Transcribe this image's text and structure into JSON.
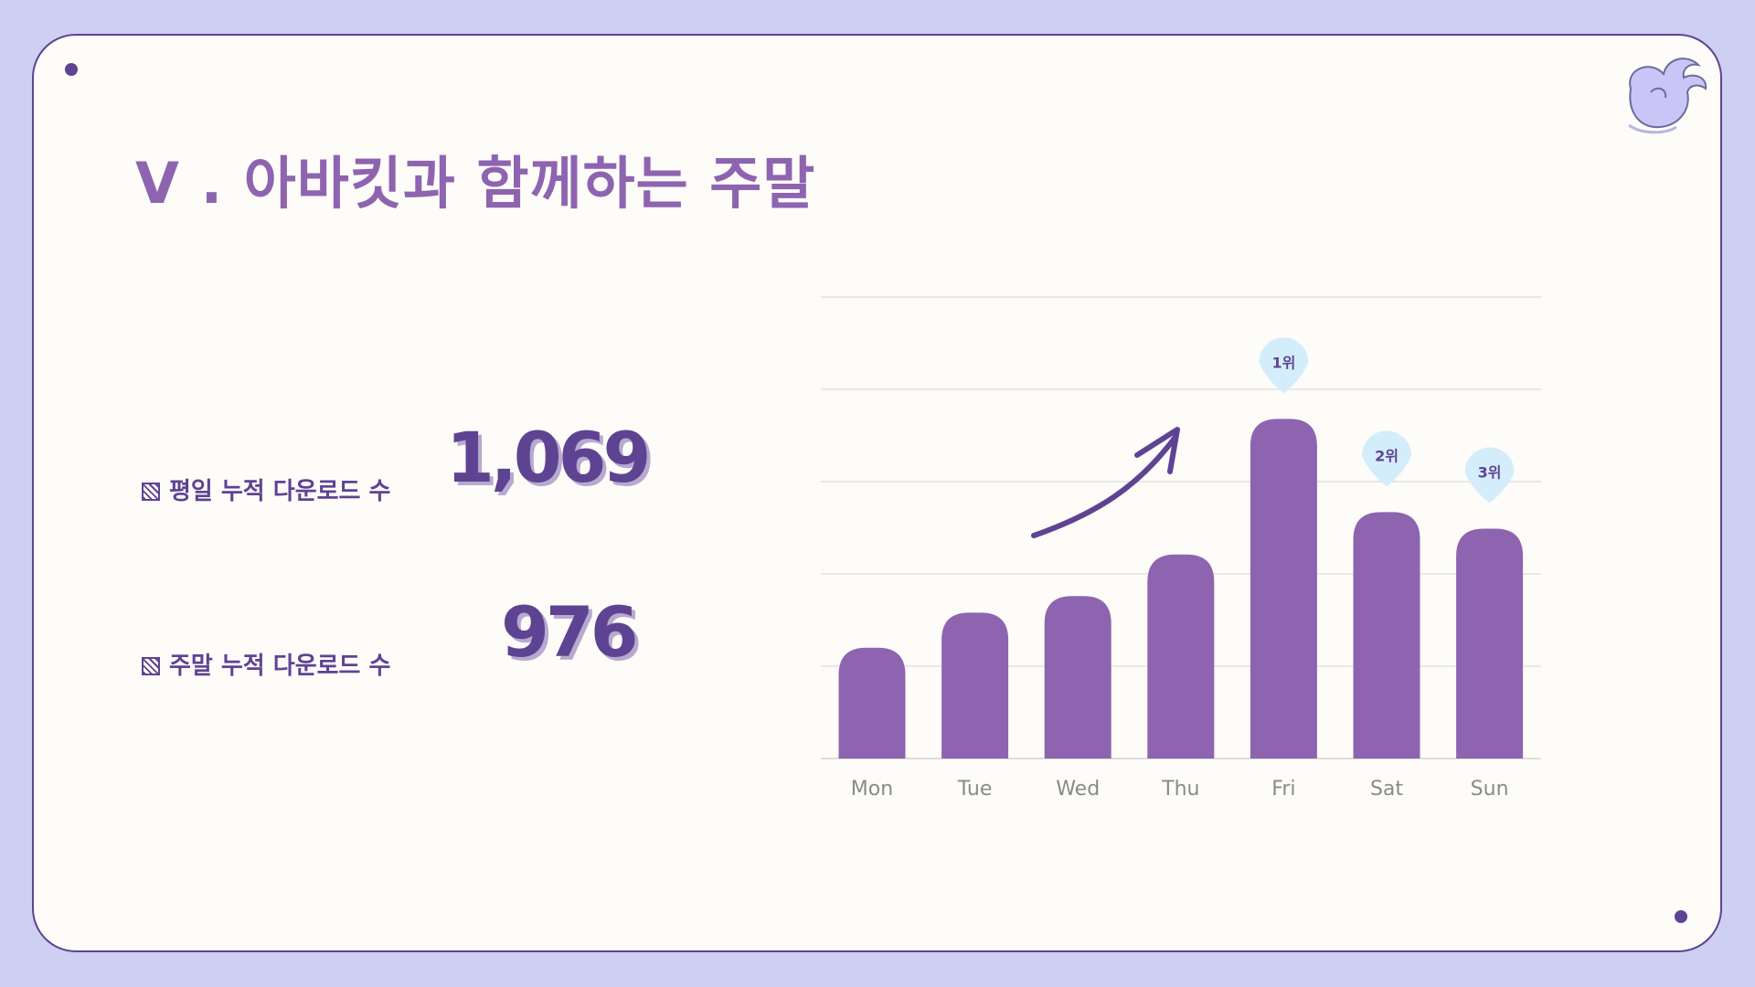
{
  "title": "V . 아바킷과 함께하는 주말",
  "stats": [
    {
      "label": "평일 누적 다운로드 수",
      "value": "1,069"
    },
    {
      "label": "주말 누적 다운로드 수",
      "value": "976"
    }
  ],
  "colors": {
    "background": "#cdd0f1",
    "card": "#fdfcf8",
    "border": "#5e4393",
    "bar": "#8e64b0",
    "badge": "#d4edfb",
    "title": "#8e64b0",
    "axis_text": "#8a8a8a"
  },
  "icons": {
    "logo": "swirl-logo-icon",
    "trend": "trend-up-arrow-icon",
    "label_marker": "hatch-square-icon"
  },
  "chart_data": {
    "type": "bar",
    "categories": [
      "Mon",
      "Tue",
      "Wed",
      "Thu",
      "Fri",
      "Sat",
      "Sun"
    ],
    "values": [
      120,
      158,
      176,
      221,
      368,
      267,
      249
    ],
    "ylim": [
      0,
      500
    ],
    "grid": true,
    "rank_badges": [
      {
        "category": "Fri",
        "label": "1위"
      },
      {
        "category": "Sat",
        "label": "2위"
      },
      {
        "category": "Sun",
        "label": "3위"
      }
    ]
  }
}
